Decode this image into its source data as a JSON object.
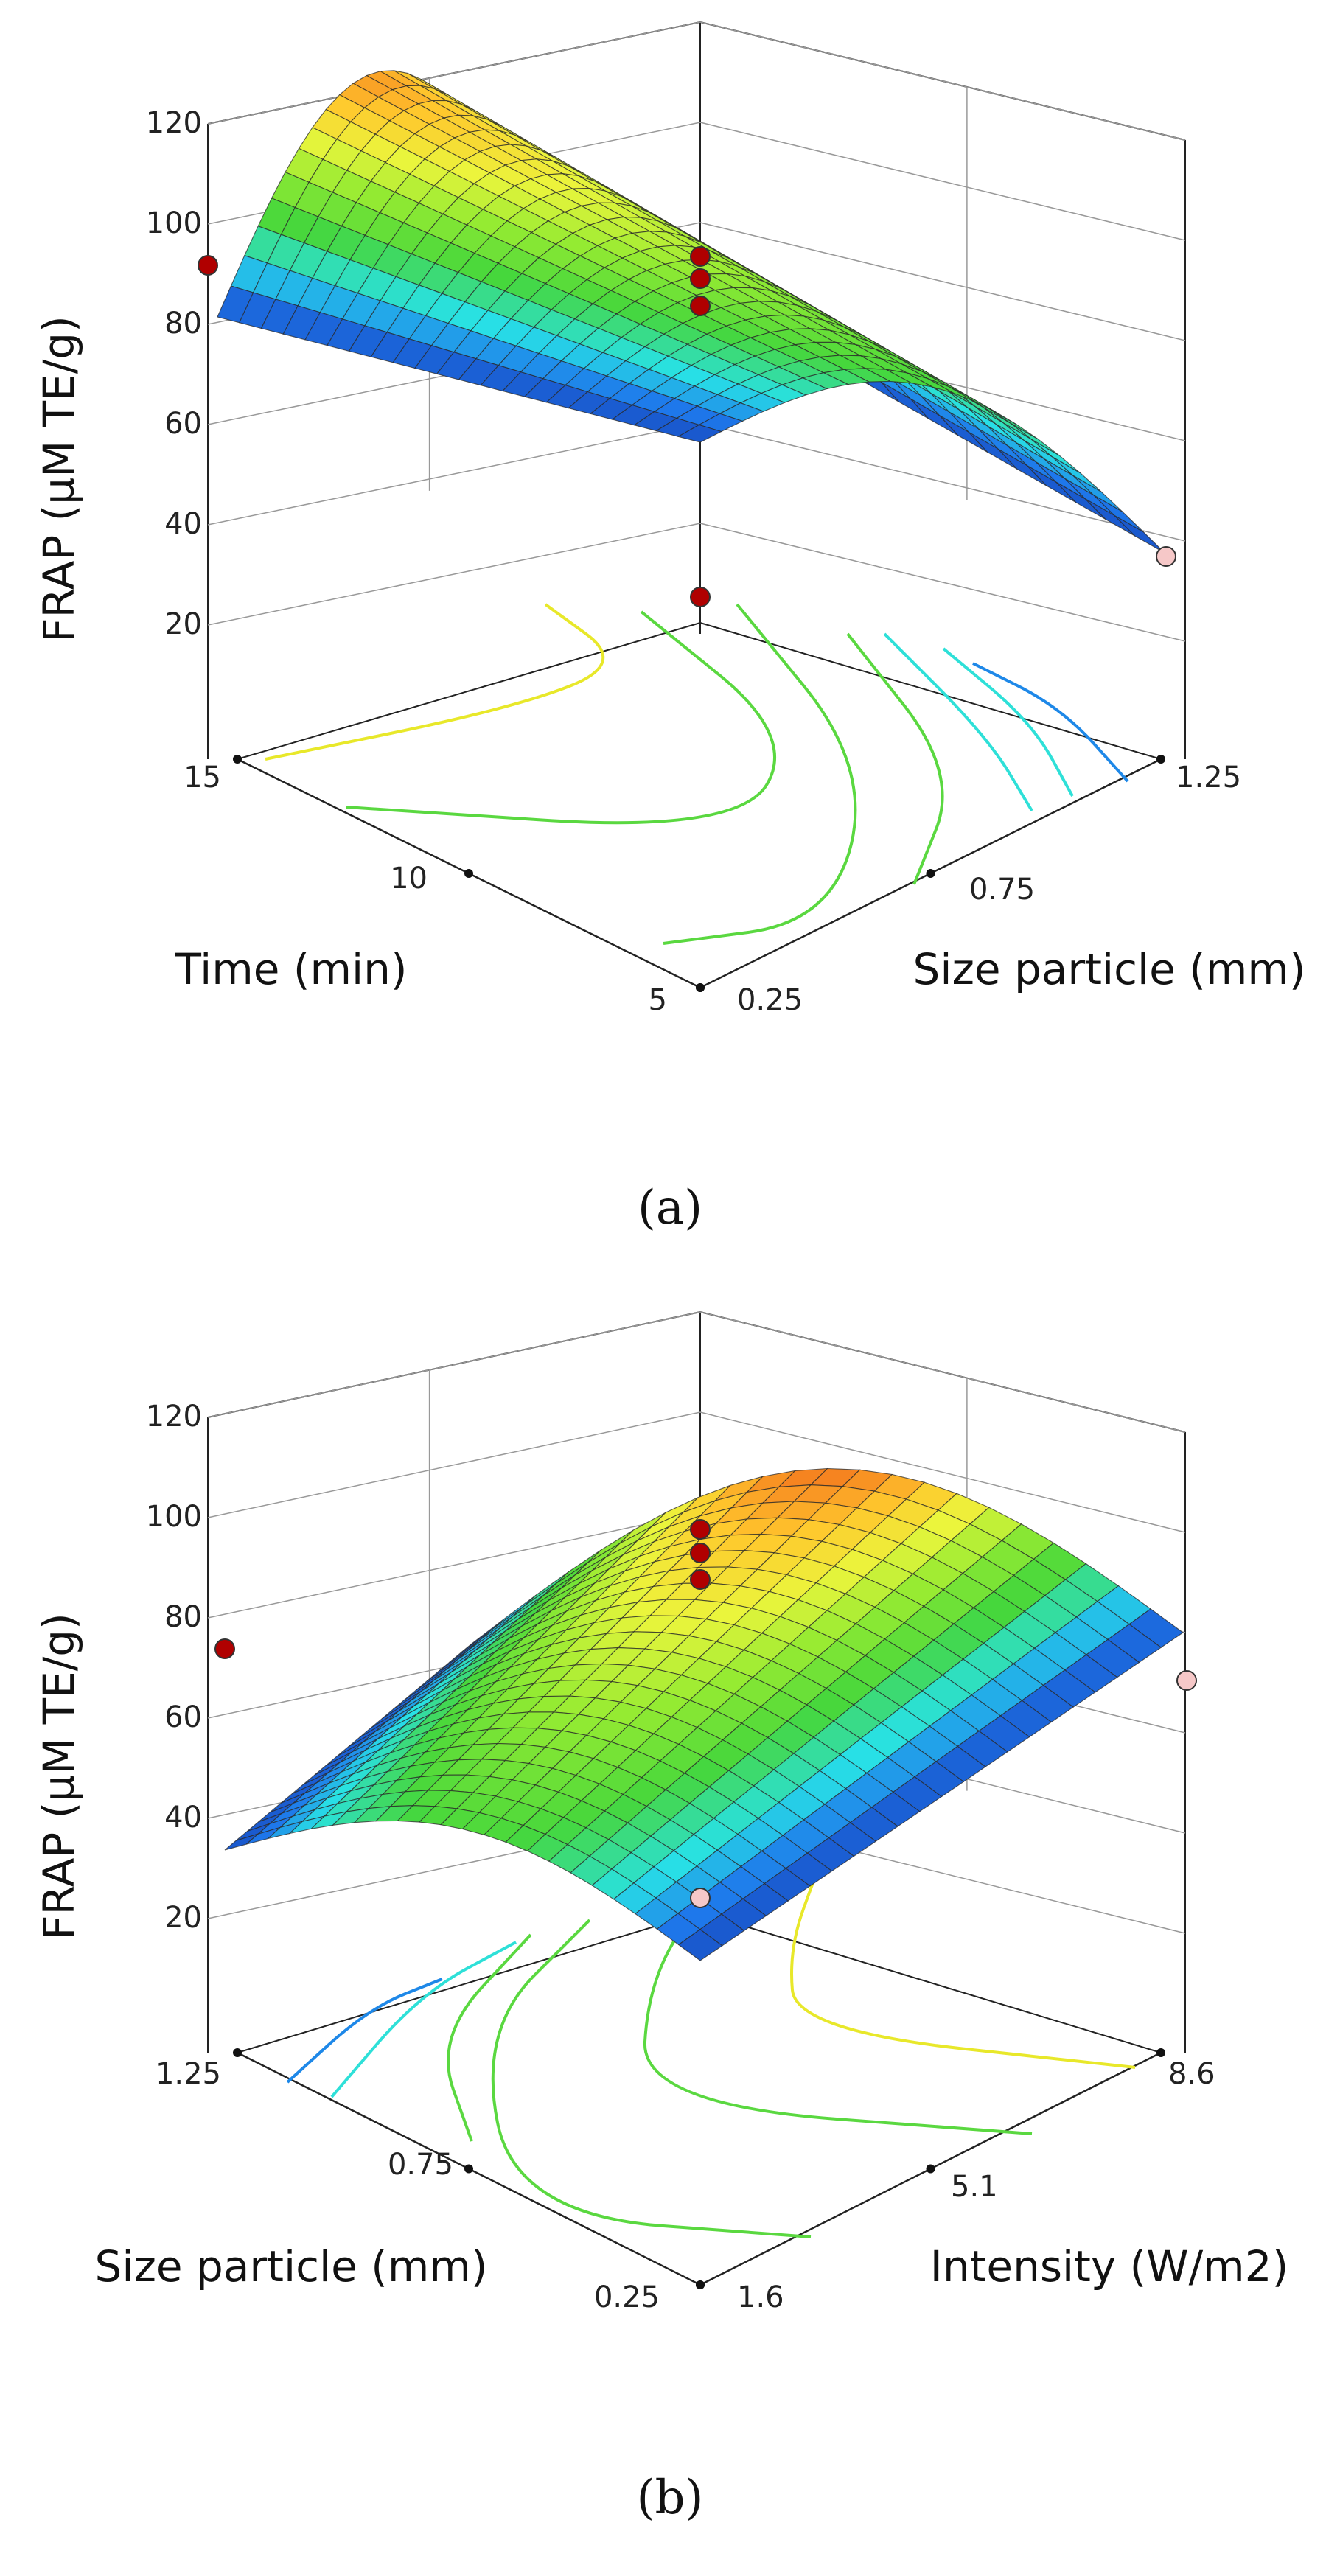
{
  "chart_data": [
    {
      "type": "surface3d",
      "caption": "(a)",
      "zlabel": "FRAP (µM TE/g)",
      "xlabel": "Time  (min)",
      "ylabel": "Size particle (mm)",
      "zticks": [
        "20",
        "40",
        "60",
        "80",
        "100",
        "120"
      ],
      "xticks": [
        "15",
        "10",
        "5"
      ],
      "yticks": [
        "0.25",
        "0.75",
        "1.25"
      ],
      "zlim": [
        0,
        120
      ],
      "surface_corners": {
        "x_far_y_near": 72,
        "x_near_y_near": 5,
        "x_near_y_far": 33,
        "x_far_y_far": 5
      },
      "peak": {
        "value": 99
      },
      "design_points": [
        {
          "label": "center",
          "values": [
            89,
            84,
            79
          ],
          "color": "#b00000"
        },
        {
          "label": "left",
          "values": [
            89
          ],
          "color": "#b00000"
        },
        {
          "label": "front",
          "values": [
            28
          ],
          "color": "#b00000"
        },
        {
          "label": "right",
          "values": [
            18
          ],
          "color": "#f6c8c8"
        }
      ]
    },
    {
      "type": "surface3d",
      "caption": "(b)",
      "zlabel": "FRAP (µM TE/g)",
      "xlabel": "Size particle (mm)",
      "ylabel": "Intensity (W/m2)",
      "zticks": [
        "20",
        "40",
        "60",
        "80",
        "100",
        "120"
      ],
      "xticks": [
        "1.25",
        "0.75",
        "0.25"
      ],
      "yticks": [
        "1.6",
        "5.1",
        "8.6"
      ],
      "zlim": [
        0,
        120
      ],
      "peak": {
        "value": 104
      },
      "design_points": [
        {
          "label": "center",
          "values": [
            89,
            85,
            79
          ],
          "color": "#b00000"
        },
        {
          "label": "left",
          "values": [
            33
          ],
          "color": "#b00000"
        },
        {
          "label": "front",
          "values": [
            10
          ],
          "color": "#f6c8c8"
        },
        {
          "label": "right",
          "values": [
            63
          ],
          "color": "#f6c8c8"
        }
      ]
    }
  ]
}
